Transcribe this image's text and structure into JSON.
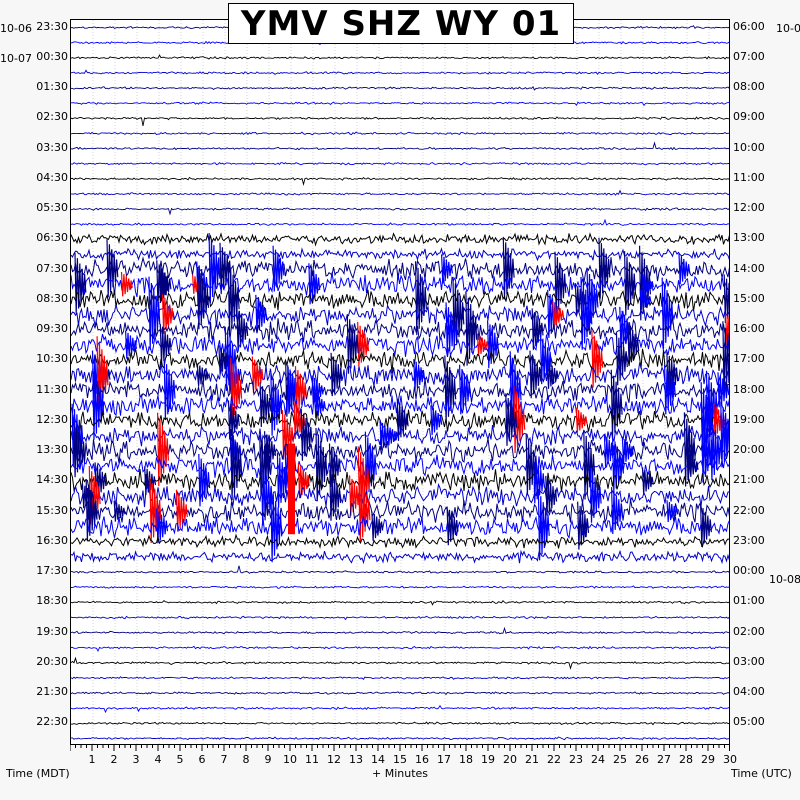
{
  "title": "YMV SHZ WY 01",
  "chart_data": {
    "type": "helicorder",
    "title": "YMV SHZ WY 01",
    "xlabel": "+ Minutes",
    "left_axis_title": "Time (MDT)",
    "right_axis_title": "Time (UTC)",
    "x_ticks": [
      1,
      2,
      3,
      4,
      5,
      6,
      7,
      8,
      9,
      10,
      11,
      12,
      13,
      14,
      15,
      16,
      17,
      18,
      19,
      20,
      21,
      22,
      23,
      24,
      25,
      26,
      27,
      28,
      29,
      30
    ],
    "xlim": [
      0,
      30
    ],
    "left_labels": [
      "23:30",
      "00:30",
      "01:30",
      "02:30",
      "03:30",
      "04:30",
      "05:30",
      "06:30",
      "07:30",
      "08:30",
      "09:30",
      "10:30",
      "11:30",
      "12:30",
      "13:30",
      "14:30",
      "15:30",
      "16:30",
      "17:30",
      "18:30",
      "19:30",
      "20:30",
      "21:30",
      "22:30"
    ],
    "right_labels": [
      "06:00",
      "07:00",
      "08:00",
      "09:00",
      "10:00",
      "11:00",
      "12:00",
      "13:00",
      "14:00",
      "15:00",
      "16:00",
      "17:00",
      "18:00",
      "19:00",
      "20:00",
      "21:00",
      "22:00",
      "23:00",
      "00:00",
      "01:00",
      "02:00",
      "03:00",
      "04:00",
      "05:00"
    ],
    "left_dates": [
      "10-06",
      "10-07"
    ],
    "right_dates": [
      "10-0",
      "10-08"
    ],
    "trace_colors": [
      "#000080",
      "#0000ff",
      "#000000",
      "#0000cc"
    ],
    "event_color": "#ff0000",
    "active_hours": [
      "06:30",
      "16:30"
    ]
  }
}
